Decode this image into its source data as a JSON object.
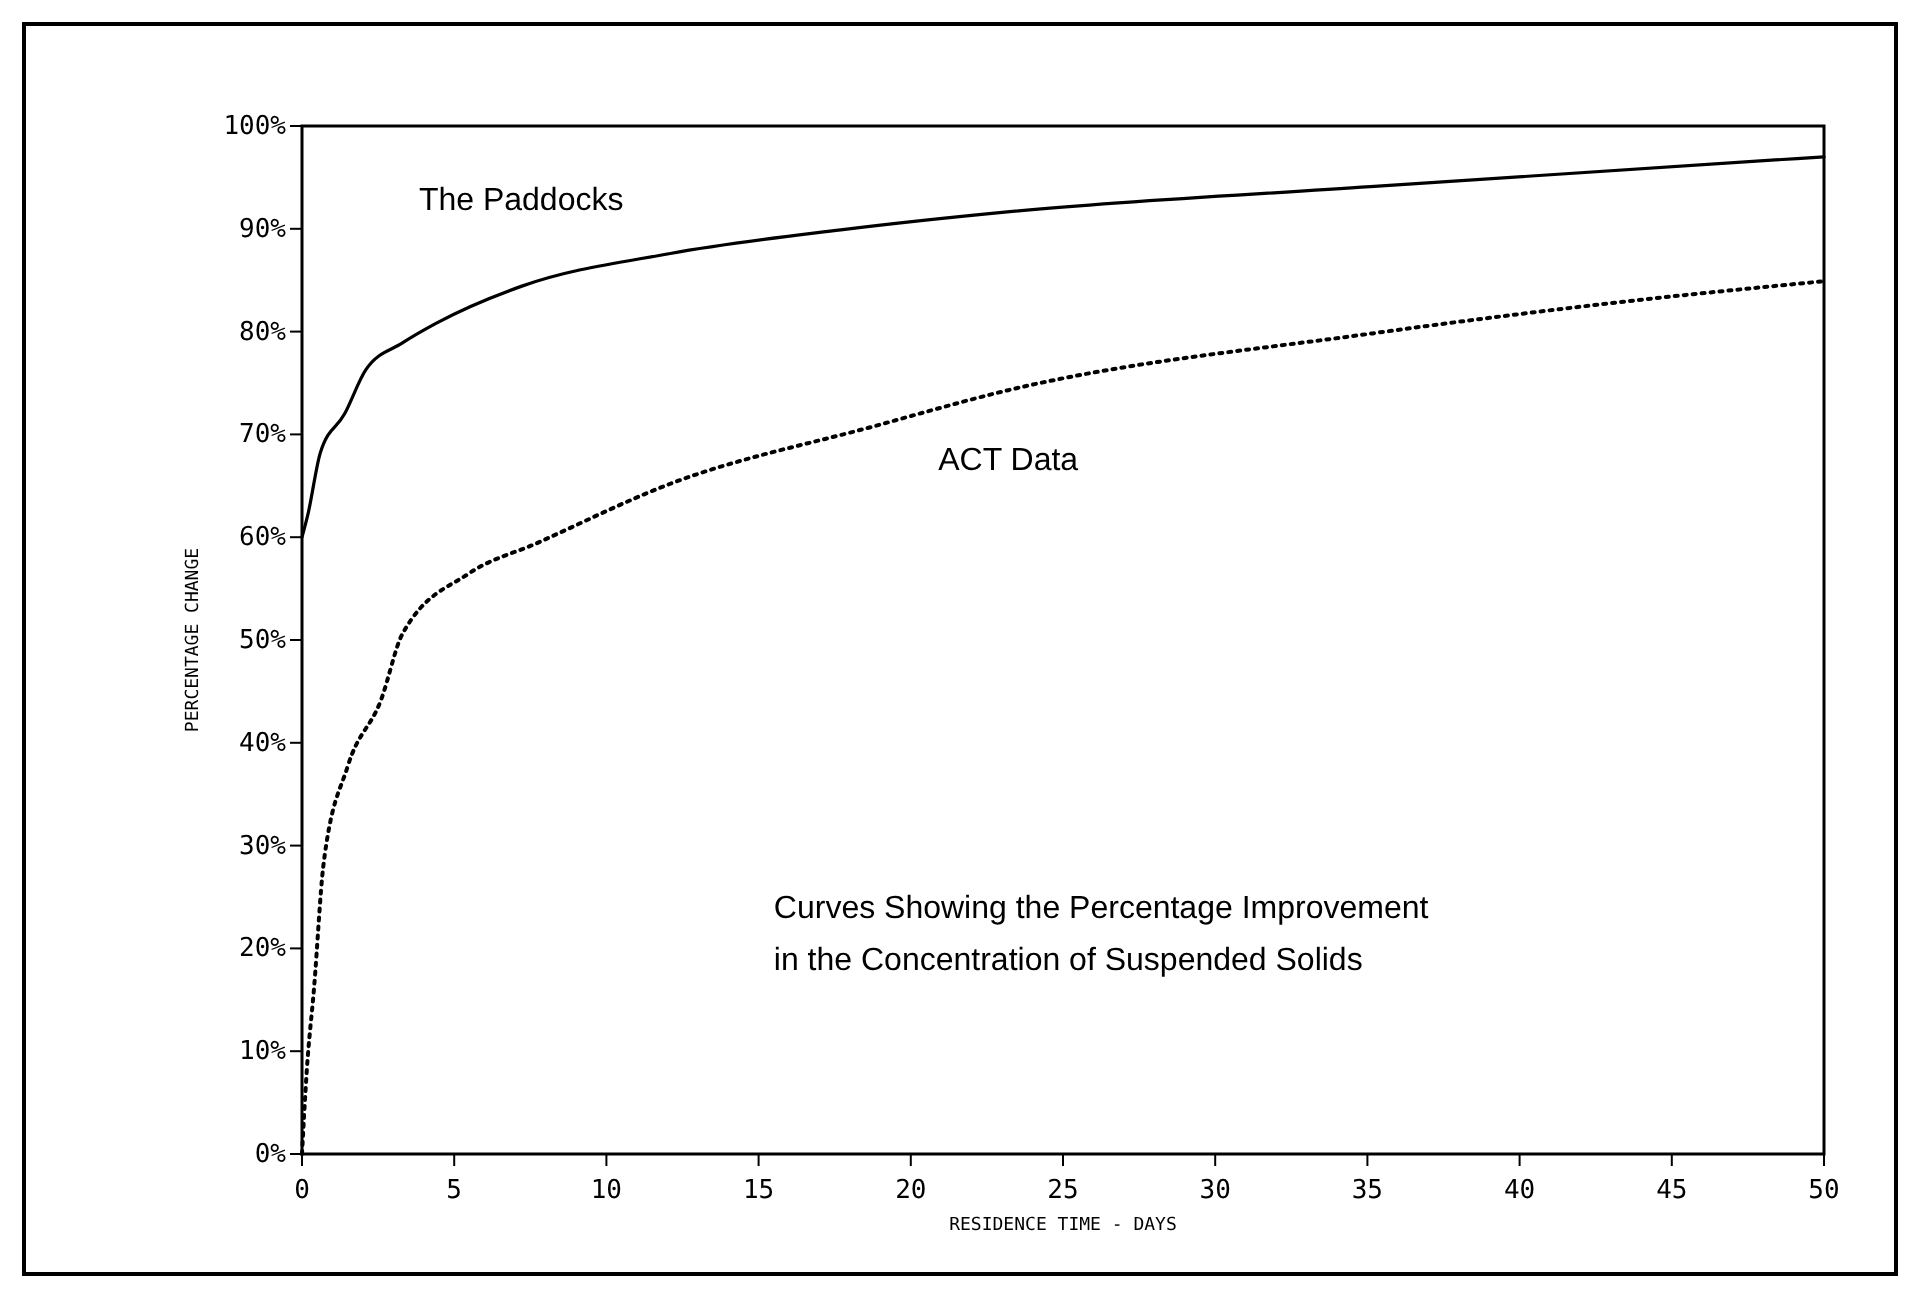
{
  "chart_data": {
    "type": "line",
    "xlabel": "RESIDENCE TIME - DAYS",
    "ylabel": "PERCENTAGE CHANGE",
    "xlim": [
      0,
      50
    ],
    "xticks": [
      0,
      5,
      10,
      15,
      20,
      25,
      30,
      35,
      40,
      45,
      50
    ],
    "ylim": [
      0,
      100
    ],
    "yticks": [
      {
        "value": 0,
        "label": "0%"
      },
      {
        "value": 10,
        "label": "10%"
      },
      {
        "value": 20,
        "label": "20%"
      },
      {
        "value": 30,
        "label": "30%"
      },
      {
        "value": 40,
        "label": "40%"
      },
      {
        "value": 50,
        "label": "50%"
      },
      {
        "value": 60,
        "label": "60%"
      },
      {
        "value": 70,
        "label": "70%"
      },
      {
        "value": 80,
        "label": "80%"
      },
      {
        "value": 90,
        "label": "90%"
      },
      {
        "value": 100,
        "label": "100%"
      }
    ],
    "grid": false,
    "legend": false,
    "marker": "none",
    "series": [
      {
        "name": "The Paddocks",
        "color": "#000000",
        "line_style": "solid",
        "x": [
          0,
          0.2,
          0.6,
          1.4,
          2.1,
          3.3,
          4.4,
          7.2,
          12.1,
          17.7,
          23,
          35.1,
          48.4,
          50
        ],
        "values": [
          60,
          62.3,
          68.2,
          72,
          76.3,
          78.9,
          80.8,
          84.4,
          87.6,
          89.9,
          91.6,
          94.1,
          96.7,
          97
        ]
      },
      {
        "name": "ACT Data",
        "color": "#000000",
        "line_style": "dotted",
        "x": [
          0,
          0.15,
          0.4,
          0.7,
          1.5,
          2.6,
          3.3,
          5.5,
          7.7,
          12.1,
          18.8,
          23.2,
          35.1,
          44,
          50
        ],
        "values": [
          0,
          7.8,
          16.3,
          28,
          37.7,
          44.2,
          50.6,
          56.5,
          59.4,
          65.2,
          70.8,
          74.3,
          79.8,
          83.1,
          84.9
        ]
      }
    ],
    "annotations": [
      "Curves Showing the Percentage Improvement\nin the Concentration of Suspended Solids"
    ]
  }
}
